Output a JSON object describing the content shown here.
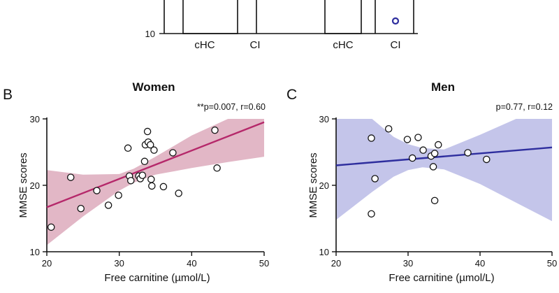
{
  "top_strip": {
    "ytick": "10",
    "categories": [
      "cHC",
      "CI",
      "cHC",
      "CI"
    ],
    "color": "#2e2e9e"
  },
  "chart_data": [
    {
      "type": "scatter",
      "panel": "B",
      "title": "Women",
      "stats": "**p=0.007, r=0.60",
      "xlabel": "Free carnitine (µmol/L)",
      "ylabel": "MMSE scores",
      "xlim": [
        20,
        50
      ],
      "ylim": [
        10,
        30
      ],
      "xticks": [
        20,
        30,
        40,
        50
      ],
      "yticks": [
        10,
        20,
        30
      ],
      "line_color": "#b5286a",
      "band_color": "#e2b7c6",
      "fit": {
        "x": [
          20,
          50
        ],
        "y": [
          16.7,
          29.5
        ]
      },
      "ci_band": {
        "x": [
          20,
          25,
          30,
          32,
          35,
          40,
          45,
          50
        ],
        "lower": [
          11.0,
          15.3,
          19.2,
          20.4,
          21.6,
          22.6,
          23.5,
          24.3
        ],
        "upper": [
          22.3,
          21.6,
          21.7,
          22.5,
          24.3,
          27.5,
          30.9,
          34.5
        ]
      },
      "points": [
        {
          "x": 20.6,
          "y": 13.7
        },
        {
          "x": 23.3,
          "y": 21.2
        },
        {
          "x": 24.7,
          "y": 16.5
        },
        {
          "x": 26.9,
          "y": 19.2
        },
        {
          "x": 28.5,
          "y": 17.0
        },
        {
          "x": 29.9,
          "y": 18.5
        },
        {
          "x": 31.2,
          "y": 25.6
        },
        {
          "x": 31.4,
          "y": 21.4
        },
        {
          "x": 31.6,
          "y": 20.7
        },
        {
          "x": 32.7,
          "y": 21.4
        },
        {
          "x": 32.9,
          "y": 21.0
        },
        {
          "x": 33.2,
          "y": 21.5
        },
        {
          "x": 33.5,
          "y": 23.6
        },
        {
          "x": 33.6,
          "y": 26.1
        },
        {
          "x": 33.9,
          "y": 28.1
        },
        {
          "x": 34.0,
          "y": 26.5
        },
        {
          "x": 34.3,
          "y": 26.1
        },
        {
          "x": 34.4,
          "y": 20.9
        },
        {
          "x": 34.5,
          "y": 19.9
        },
        {
          "x": 34.8,
          "y": 25.3
        },
        {
          "x": 36.1,
          "y": 19.8
        },
        {
          "x": 37.4,
          "y": 24.9
        },
        {
          "x": 38.2,
          "y": 18.8
        },
        {
          "x": 43.2,
          "y": 28.3
        },
        {
          "x": 43.5,
          "y": 22.6
        }
      ]
    },
    {
      "type": "scatter",
      "panel": "C",
      "title": "Men",
      "stats": "p=0.77, r=0.12",
      "xlabel": "Free carnitine (µmol/L)",
      "ylabel": "MMSE scores",
      "xlim": [
        20,
        50
      ],
      "ylim": [
        10,
        30
      ],
      "xticks": [
        20,
        30,
        40,
        50
      ],
      "yticks": [
        10,
        20,
        30
      ],
      "line_color": "#2e2e9e",
      "band_color": "#c4c5ea",
      "fit": {
        "x": [
          20,
          50
        ],
        "y": [
          23.0,
          25.7
        ]
      },
      "ci_band": {
        "x": [
          20,
          25,
          28,
          30,
          32,
          35,
          40,
          45,
          50
        ],
        "lower": [
          14.8,
          19.0,
          21.3,
          22.3,
          22.7,
          22.4,
          20.2,
          17.4,
          14.6
        ],
        "upper": [
          30.0,
          30.0,
          27.3,
          26.2,
          25.6,
          25.4,
          27.6,
          30.0,
          30.0
        ]
      },
      "points": [
        {
          "x": 24.9,
          "y": 15.7
        },
        {
          "x": 24.9,
          "y": 27.1
        },
        {
          "x": 25.4,
          "y": 21.0
        },
        {
          "x": 27.3,
          "y": 28.5
        },
        {
          "x": 29.9,
          "y": 26.9
        },
        {
          "x": 30.6,
          "y": 24.1
        },
        {
          "x": 31.4,
          "y": 27.2
        },
        {
          "x": 32.1,
          "y": 25.3
        },
        {
          "x": 33.2,
          "y": 24.4
        },
        {
          "x": 33.5,
          "y": 22.8
        },
        {
          "x": 33.7,
          "y": 24.8
        },
        {
          "x": 33.7,
          "y": 17.7
        },
        {
          "x": 34.2,
          "y": 26.1
        },
        {
          "x": 38.3,
          "y": 24.9
        },
        {
          "x": 40.9,
          "y": 23.9
        }
      ]
    }
  ]
}
